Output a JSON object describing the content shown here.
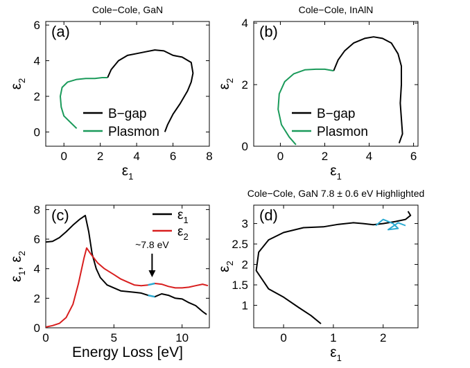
{
  "chart_data": [
    {
      "id": "a",
      "type": "line",
      "panel_label": "(a)",
      "title": "Cole−Cole, GaN",
      "xlabel": "ε",
      "xlabel_sub": "1",
      "ylabel": "ε",
      "ylabel_sub": "2",
      "xlim": [
        -1,
        8
      ],
      "ylim": [
        -0.8,
        6.2
      ],
      "xticks": [
        0,
        2,
        4,
        6,
        8
      ],
      "yticks": [
        0,
        2,
        4,
        6
      ],
      "legend": "lower-right",
      "series": [
        {
          "name": "B−gap",
          "color": "#000000",
          "points": [
            [
              2.4,
              3.05
            ],
            [
              2.6,
              3.5
            ],
            [
              3.0,
              4.0
            ],
            [
              3.5,
              4.3
            ],
            [
              4.0,
              4.4
            ],
            [
              4.5,
              4.5
            ],
            [
              5.0,
              4.6
            ],
            [
              5.5,
              4.55
            ],
            [
              6.0,
              4.3
            ],
            [
              6.5,
              4.2
            ],
            [
              7.0,
              3.9
            ],
            [
              7.1,
              3.3
            ],
            [
              7.0,
              2.8
            ],
            [
              6.8,
              2.3
            ],
            [
              6.4,
              1.6
            ],
            [
              6.0,
              1.0
            ],
            [
              5.7,
              0.4
            ],
            [
              5.55,
              0.0
            ]
          ]
        },
        {
          "name": "Plasmon",
          "color": "#1a9a5a",
          "points": [
            [
              0.7,
              0.2
            ],
            [
              0.4,
              0.5
            ],
            [
              0.0,
              0.9
            ],
            [
              -0.15,
              1.4
            ],
            [
              -0.2,
              2.0
            ],
            [
              -0.1,
              2.5
            ],
            [
              0.2,
              2.8
            ],
            [
              0.7,
              2.95
            ],
            [
              1.2,
              3.0
            ],
            [
              1.7,
              3.0
            ],
            [
              2.1,
              3.05
            ],
            [
              2.4,
              3.05
            ]
          ]
        }
      ]
    },
    {
      "id": "b",
      "type": "line",
      "panel_label": "(b)",
      "title": "Cole−Cole, InAlN",
      "xlabel": "ε",
      "xlabel_sub": "1",
      "ylabel": "ε",
      "ylabel_sub": "2",
      "xlim": [
        -1.2,
        6.2
      ],
      "ylim": [
        0,
        4.05
      ],
      "xticks": [
        0,
        2,
        4,
        6
      ],
      "yticks": [
        0,
        2,
        4
      ],
      "legend": "lower-right",
      "series": [
        {
          "name": "B−gap",
          "color": "#000000",
          "points": [
            [
              2.4,
              2.45
            ],
            [
              2.6,
              2.8
            ],
            [
              2.9,
              3.1
            ],
            [
              3.3,
              3.35
            ],
            [
              3.8,
              3.5
            ],
            [
              4.2,
              3.55
            ],
            [
              4.6,
              3.5
            ],
            [
              5.0,
              3.35
            ],
            [
              5.3,
              3.0
            ],
            [
              5.45,
              2.6
            ],
            [
              5.45,
              2.0
            ],
            [
              5.4,
              1.4
            ],
            [
              5.45,
              0.9
            ],
            [
              5.5,
              0.4
            ],
            [
              5.35,
              0.1
            ]
          ]
        },
        {
          "name": "Plasmon",
          "color": "#1a9a5a",
          "points": [
            [
              0.7,
              0.05
            ],
            [
              0.4,
              0.3
            ],
            [
              0.05,
              0.7
            ],
            [
              -0.1,
              1.2
            ],
            [
              -0.05,
              1.7
            ],
            [
              0.2,
              2.1
            ],
            [
              0.6,
              2.35
            ],
            [
              1.1,
              2.48
            ],
            [
              1.6,
              2.5
            ],
            [
              2.0,
              2.5
            ],
            [
              2.4,
              2.45
            ]
          ]
        }
      ]
    },
    {
      "id": "c",
      "type": "line",
      "panel_label": "(c)",
      "title": "",
      "xlabel": "Energy Loss [eV]",
      "ylabel": "ε",
      "ylabel_sub": "1",
      "ylabel2": "ε",
      "ylabel2_sub": "2",
      "xlim": [
        0,
        12
      ],
      "ylim": [
        0,
        8.3
      ],
      "xticks": [
        0,
        5,
        10
      ],
      "yticks": [
        0,
        2,
        4,
        6,
        8
      ],
      "legend": "top-right",
      "annotation": {
        "text": "~7.8 eV",
        "x": 7.8
      },
      "highlight": {
        "color": "#2aaad2",
        "x_range": [
          7.2,
          8.4
        ]
      },
      "series": [
        {
          "name": "ε",
          "name_sub": "1",
          "color": "#000000",
          "points": [
            [
              0,
              5.8
            ],
            [
              0.5,
              5.85
            ],
            [
              1.0,
              6.1
            ],
            [
              1.5,
              6.5
            ],
            [
              2.0,
              6.95
            ],
            [
              2.5,
              7.35
            ],
            [
              2.9,
              7.6
            ],
            [
              3.15,
              6.5
            ],
            [
              3.4,
              5.0
            ],
            [
              3.7,
              4.0
            ],
            [
              4.0,
              3.4
            ],
            [
              4.5,
              2.9
            ],
            [
              5.0,
              2.7
            ],
            [
              5.5,
              2.5
            ],
            [
              6.0,
              2.45
            ],
            [
              6.5,
              2.4
            ],
            [
              7.0,
              2.35
            ],
            [
              7.5,
              2.2
            ],
            [
              8.0,
              2.1
            ],
            [
              8.5,
              2.3
            ],
            [
              9.0,
              2.2
            ],
            [
              9.5,
              2.0
            ],
            [
              10.0,
              1.95
            ],
            [
              10.5,
              1.7
            ],
            [
              11.0,
              1.5
            ],
            [
              11.5,
              1.1
            ],
            [
              11.8,
              0.9
            ]
          ]
        },
        {
          "name": "ε",
          "name_sub": "2",
          "color": "#d81e1e",
          "points": [
            [
              0,
              0.05
            ],
            [
              0.5,
              0.15
            ],
            [
              1.0,
              0.3
            ],
            [
              1.5,
              0.7
            ],
            [
              2.0,
              1.6
            ],
            [
              2.4,
              3.0
            ],
            [
              2.8,
              4.7
            ],
            [
              3.0,
              5.4
            ],
            [
              3.3,
              5.0
            ],
            [
              3.8,
              4.4
            ],
            [
              4.3,
              4.0
            ],
            [
              5.0,
              3.6
            ],
            [
              5.5,
              3.3
            ],
            [
              6.0,
              3.1
            ],
            [
              6.5,
              2.9
            ],
            [
              7.0,
              2.85
            ],
            [
              7.5,
              2.9
            ],
            [
              8.0,
              3.0
            ],
            [
              8.5,
              2.95
            ],
            [
              9.0,
              2.8
            ],
            [
              9.5,
              2.7
            ],
            [
              10.0,
              2.7
            ],
            [
              10.5,
              2.75
            ],
            [
              11.0,
              2.85
            ],
            [
              11.5,
              2.95
            ],
            [
              11.9,
              2.85
            ]
          ]
        }
      ]
    },
    {
      "id": "d",
      "type": "line",
      "panel_label": "(d)",
      "title": "Cole−Cole, GaN 7.8 ± 0.6 eV Highlighted",
      "xlabel": "ε",
      "xlabel_sub": "1",
      "ylabel": "ε",
      "ylabel_sub": "2",
      "xlim": [
        -0.6,
        2.7
      ],
      "ylim": [
        0.45,
        3.45
      ],
      "xticks": [
        0,
        1,
        2
      ],
      "yticks": [
        1,
        1.5,
        2,
        2.5,
        3
      ],
      "legend": "none",
      "series": [
        {
          "name": "",
          "color": "#000000",
          "points": [
            [
              0.75,
              0.55
            ],
            [
              0.55,
              0.75
            ],
            [
              0.3,
              0.95
            ],
            [
              0.0,
              1.2
            ],
            [
              -0.3,
              1.4
            ],
            [
              -0.55,
              1.85
            ],
            [
              -0.5,
              2.3
            ],
            [
              -0.3,
              2.6
            ],
            [
              0.0,
              2.78
            ],
            [
              0.4,
              2.9
            ],
            [
              0.8,
              2.92
            ],
            [
              1.1,
              2.98
            ],
            [
              1.4,
              3.02
            ],
            [
              1.6,
              3.0
            ],
            [
              1.8,
              2.97
            ],
            [
              2.0,
              3.0
            ],
            [
              2.25,
              3.05
            ],
            [
              2.45,
              3.1
            ],
            [
              2.55,
              3.2
            ],
            [
              2.5,
              3.3
            ]
          ]
        },
        {
          "name": "",
          "color": "#2aaad2",
          "points": [
            [
              1.85,
              2.95
            ],
            [
              2.0,
              3.1
            ],
            [
              2.2,
              3.0
            ],
            [
              2.3,
              2.88
            ],
            [
              2.1,
              2.85
            ],
            [
              2.3,
              3.02
            ],
            [
              2.45,
              2.95
            ]
          ]
        }
      ]
    }
  ]
}
